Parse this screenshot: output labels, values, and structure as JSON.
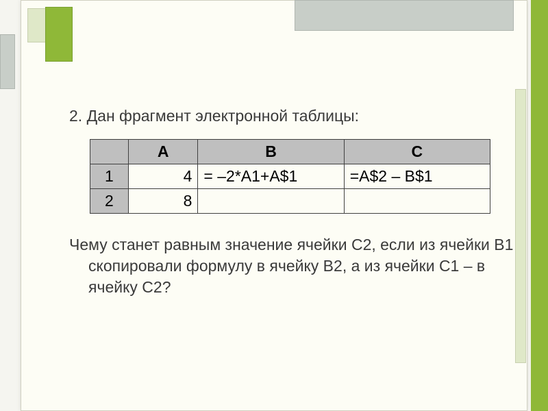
{
  "heading": "2. Дан фрагмент электронной таблицы:",
  "table": {
    "columns": [
      "A",
      "B",
      "C"
    ],
    "row_headers": [
      "1",
      "2"
    ],
    "cells": {
      "A1": "4",
      "B1": "= –2*A1+A$1",
      "C1": "=A$2 – B$1",
      "A2": "8",
      "B2": "",
      "C2": ""
    },
    "header_bg": "#bfbfbf",
    "border_color": "#404040",
    "col_widths": {
      "corner": 55,
      "A": 100,
      "B": 210,
      "C": 210
    },
    "fontsize": 23
  },
  "question": "Чему станет равным значение ячейки С2, если из ячейки В1 скопировали формулу в ячейку В2, а из ячейки С1 – в ячейку С2?",
  "theme": {
    "accent_green": "#8fb838",
    "light_green": "#dfe8c8",
    "gray_block": "#c8cec8",
    "page_bg": "#fdfdf5"
  }
}
